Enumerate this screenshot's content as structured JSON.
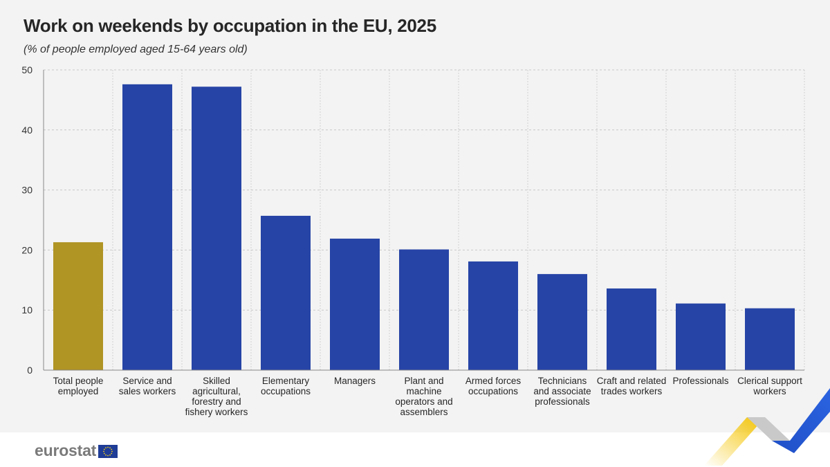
{
  "chart_data": {
    "type": "bar",
    "title": "Work on weekends by occupation in the EU, 2025",
    "subtitle": "(% of people employed aged 15-64 years old)",
    "categories": [
      [
        "Total people",
        "employed"
      ],
      [
        "Service and",
        "sales workers"
      ],
      [
        "Skilled",
        "agricultural,",
        "forestry and",
        "fishery workers"
      ],
      [
        "Elementary",
        "occupations"
      ],
      [
        "Managers"
      ],
      [
        "Plant and",
        "machine",
        "operators and",
        "assemblers"
      ],
      [
        "Armed forces",
        "occupations"
      ],
      [
        "Technicians",
        "and associate",
        "professionals"
      ],
      [
        "Craft and related",
        "trades workers"
      ],
      [
        "Professionals"
      ],
      [
        "Clerical support",
        "workers"
      ]
    ],
    "values": [
      21.3,
      47.6,
      47.2,
      25.7,
      21.9,
      20.1,
      18.1,
      16.0,
      13.6,
      11.1,
      10.3
    ],
    "highlight_index": 0,
    "colors": {
      "highlight": "#b09424",
      "bar": "#2644a6"
    },
    "ylim": [
      0,
      50
    ],
    "yticks": [
      0,
      10,
      20,
      30,
      40,
      50
    ],
    "grid": true,
    "xlabel": "",
    "ylabel": ""
  },
  "footer": {
    "logo_text": "eurostat"
  }
}
